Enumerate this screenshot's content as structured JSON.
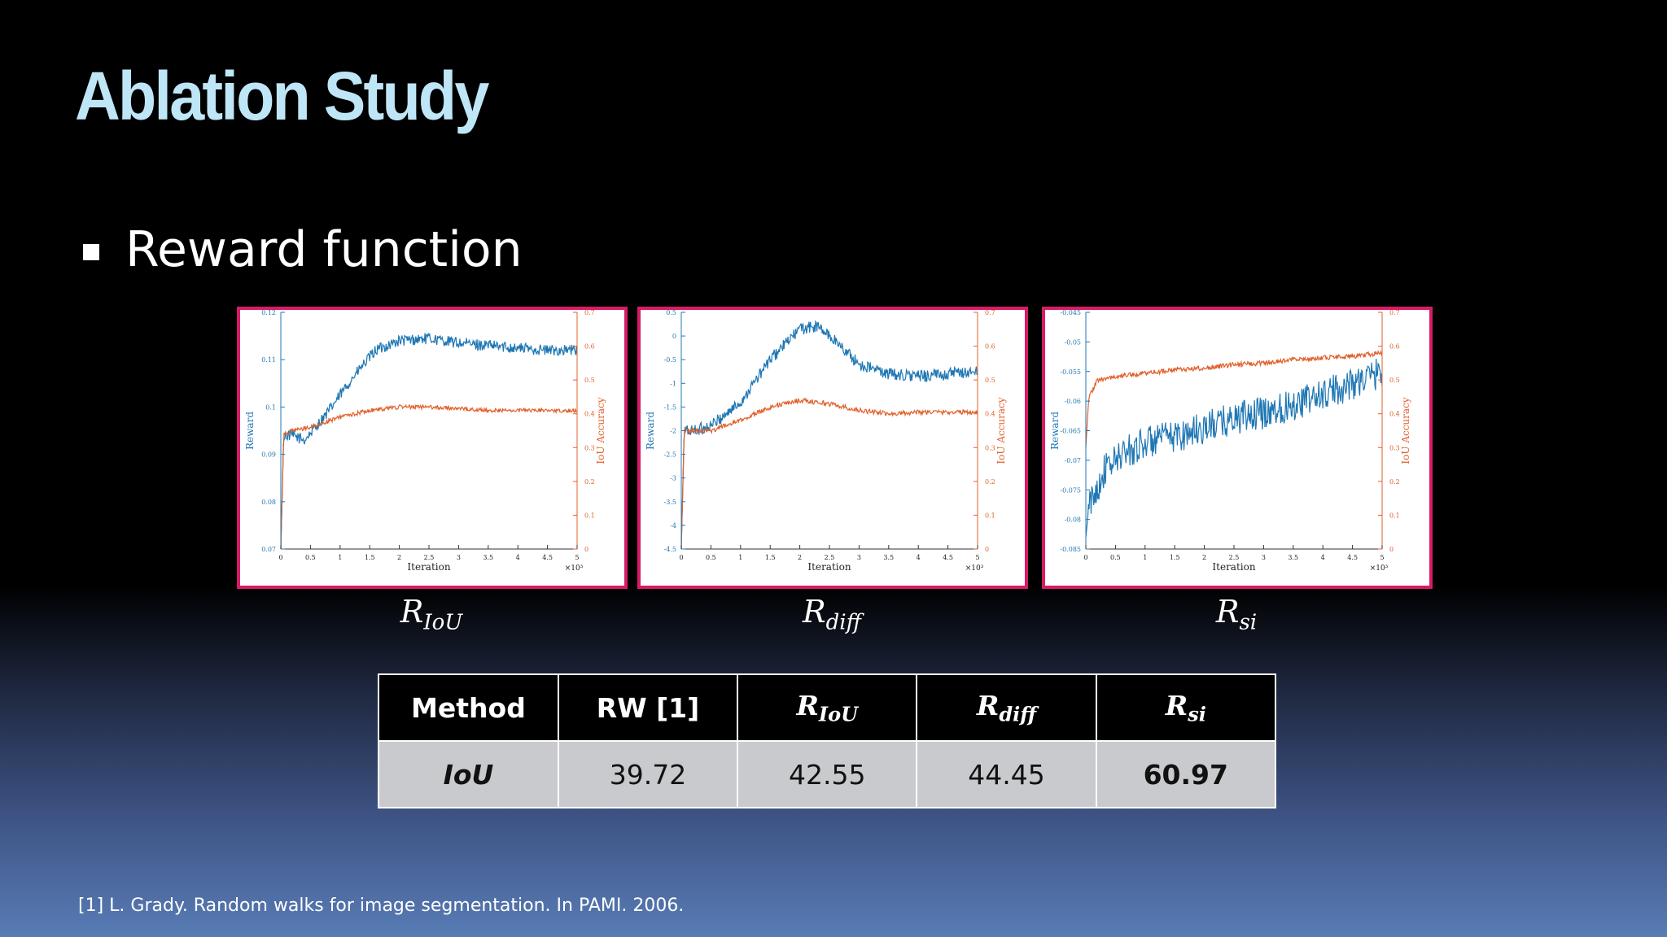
{
  "slide": {
    "title": "Ablation Study",
    "bullet": "Reward function",
    "reference": "[1] L. Grady. Random walks for image segmentation. In PAMI. 2006."
  },
  "captions": [
    {
      "base": "R",
      "sub": "IoU"
    },
    {
      "base": "R",
      "sub": "diff"
    },
    {
      "base": "R",
      "sub": "si"
    }
  ],
  "table": {
    "headers": [
      {
        "text": "Method"
      },
      {
        "text": "RW [1]"
      },
      {
        "base": "R",
        "sub": "IoU"
      },
      {
        "base": "R",
        "sub": "diff"
      },
      {
        "base": "R",
        "sub": "si"
      }
    ],
    "rows": [
      {
        "label": "IoU",
        "values": [
          "39.72",
          "42.55",
          "44.45",
          "60.97"
        ]
      }
    ]
  },
  "colors": {
    "reward": "#1f77b4",
    "iou": "#e0602a",
    "frame": "#d81b66",
    "axis": "#333333"
  },
  "chart_data": [
    {
      "type": "line",
      "xlabel": "Iteration",
      "x_multiplier": "×10³",
      "ylabel": "Reward",
      "y2label": "IoU Accuracy",
      "xlim": [
        0,
        5
      ],
      "xticks": [
        "0",
        "0.5",
        "1",
        "1.5",
        "2",
        "2.5",
        "3",
        "3.5",
        "4",
        "4.5",
        "5"
      ],
      "ylim": [
        0.07,
        0.12
      ],
      "yticks": [
        "0.07",
        "0.08",
        "0.09",
        "0.1",
        "0.11",
        "0.12"
      ],
      "y2lim": [
        0,
        0.7
      ],
      "y2ticks": [
        "0",
        "0.1",
        "0.2",
        "0.3",
        "0.4",
        "0.5",
        "0.6",
        "0.7"
      ],
      "series": [
        {
          "axis": "left",
          "color": "#1f77b4",
          "noise": 0.0012,
          "x": [
            0,
            0.05,
            0.2,
            0.4,
            0.8,
            1.2,
            1.6,
            2.0,
            2.5,
            3.0,
            3.5,
            4.0,
            4.5,
            5.0
          ],
          "y": [
            0.07,
            0.094,
            0.094,
            0.093,
            0.099,
            0.106,
            0.112,
            0.114,
            0.1145,
            0.1135,
            0.113,
            0.1125,
            0.112,
            0.112
          ]
        },
        {
          "axis": "right",
          "color": "#e0602a",
          "noise": 0.006,
          "x": [
            0,
            0.05,
            0.2,
            0.5,
            1.0,
            1.5,
            2.0,
            2.5,
            3.0,
            3.5,
            4.0,
            4.5,
            5.0
          ],
          "y": [
            0.0,
            0.34,
            0.35,
            0.36,
            0.39,
            0.41,
            0.42,
            0.42,
            0.415,
            0.41,
            0.41,
            0.41,
            0.41
          ]
        }
      ]
    },
    {
      "type": "line",
      "xlabel": "Iteration",
      "x_multiplier": "×10³",
      "ylabel": "Reward",
      "y2label": "IoU Accuracy",
      "xlim": [
        0,
        5
      ],
      "xticks": [
        "0",
        "0.5",
        "1",
        "1.5",
        "2",
        "2.5",
        "3",
        "3.5",
        "4",
        "4.5",
        "5"
      ],
      "ylim": [
        -4.5,
        0.5
      ],
      "yticks": [
        "-4.5",
        "-4",
        "-3.5",
        "-3",
        "-2.5",
        "-2",
        "-1.5",
        "-1",
        "-0.5",
        "0",
        "0.5"
      ],
      "y2lim": [
        0,
        0.7
      ],
      "y2ticks": [
        "0",
        "0.1",
        "0.2",
        "0.3",
        "0.4",
        "0.5",
        "0.6",
        "0.7"
      ],
      "series": [
        {
          "axis": "left",
          "color": "#1f77b4",
          "noise": 0.13,
          "x": [
            0,
            0.05,
            0.2,
            0.5,
            1.0,
            1.5,
            2.0,
            2.3,
            2.6,
            3.0,
            3.5,
            4.0,
            4.5,
            5.0
          ],
          "y": [
            -4.5,
            -2.0,
            -2.0,
            -1.9,
            -1.4,
            -0.5,
            0.15,
            0.2,
            -0.1,
            -0.6,
            -0.8,
            -0.85,
            -0.8,
            -0.75
          ]
        },
        {
          "axis": "right",
          "color": "#e0602a",
          "noise": 0.007,
          "x": [
            0,
            0.05,
            0.2,
            0.5,
            1.0,
            1.5,
            2.0,
            2.5,
            3.0,
            3.5,
            4.0,
            4.5,
            5.0
          ],
          "y": [
            0.0,
            0.35,
            0.35,
            0.35,
            0.38,
            0.42,
            0.44,
            0.43,
            0.41,
            0.4,
            0.405,
            0.405,
            0.405
          ]
        }
      ]
    },
    {
      "type": "line",
      "xlabel": "Iteration",
      "x_multiplier": "×10³",
      "ylabel": "Reward",
      "y2label": "IoU Accuracy",
      "xlim": [
        0,
        5
      ],
      "xticks": [
        "0",
        "0.5",
        "1",
        "1.5",
        "2",
        "2.5",
        "3",
        "3.5",
        "4",
        "4.5",
        "5"
      ],
      "ylim": [
        -0.085,
        -0.045
      ],
      "yticks": [
        "-0.085",
        "-0.08",
        "-0.075",
        "-0.07",
        "-0.065",
        "-0.06",
        "-0.055",
        "-0.05",
        "-0.045"
      ],
      "y2lim": [
        0,
        0.7
      ],
      "y2ticks": [
        "0",
        "0.1",
        "0.2",
        "0.3",
        "0.4",
        "0.5",
        "0.6",
        "0.7"
      ],
      "series": [
        {
          "axis": "left",
          "color": "#1f77b4",
          "noise": 0.0028,
          "x": [
            0,
            0.05,
            0.3,
            0.6,
            1.0,
            1.5,
            2.0,
            2.5,
            3.0,
            3.5,
            4.0,
            4.5,
            5.0
          ],
          "y": [
            -0.083,
            -0.078,
            -0.072,
            -0.069,
            -0.067,
            -0.066,
            -0.0645,
            -0.063,
            -0.062,
            -0.0605,
            -0.059,
            -0.057,
            -0.055
          ]
        },
        {
          "axis": "right",
          "color": "#e0602a",
          "noise": 0.007,
          "x": [
            0,
            0.05,
            0.2,
            0.5,
            1.0,
            1.5,
            2.0,
            2.5,
            3.0,
            3.5,
            4.0,
            4.5,
            5.0
          ],
          "y": [
            0.3,
            0.45,
            0.5,
            0.51,
            0.52,
            0.53,
            0.535,
            0.545,
            0.55,
            0.56,
            0.565,
            0.57,
            0.58
          ]
        }
      ]
    }
  ]
}
